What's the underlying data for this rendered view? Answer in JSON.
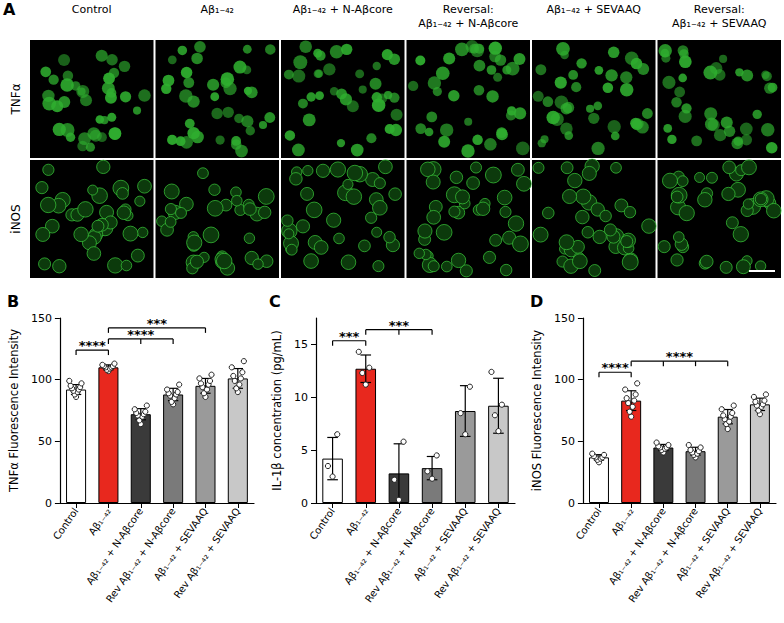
{
  "panel_a": {
    "label": "A",
    "columns": [
      [
        "Control"
      ],
      [
        "Aβ₁₋₄₂"
      ],
      [
        "Aβ₁₋₄₂ + N-Aβcore"
      ],
      [
        "Reversal:",
        "Aβ₁₋₄₂ + N-Aβcore"
      ],
      [
        "Aβ₁₋₄₂ + SEVAAQ"
      ],
      [
        "Reversal:",
        "Aβ₁₋₄₂ + SEVAAQ"
      ]
    ],
    "rows": [
      "TNFα",
      "iNOS"
    ]
  },
  "chart_data": [
    {
      "type": "bar",
      "title": "B",
      "categories": [
        "Control",
        "Aβ₁₋₄₂",
        "Aβ₁₋₄₂ + N-Aβcore",
        "Rev Aβ₁₋₄₂ + N-Aβcore",
        "Aβ₁₋₄₂ + SEVAAQ",
        "Rev Aβ₁₋₄₂ + SEVAAQ"
      ],
      "values": [
        92,
        110,
        72,
        88,
        95,
        101
      ],
      "errors": [
        4,
        2,
        4.5,
        5,
        6,
        8
      ],
      "points": [
        [
          86,
          88,
          90,
          91,
          92,
          93,
          94,
          95,
          97,
          99
        ],
        [
          107,
          108,
          109,
          110,
          110,
          111,
          111,
          112,
          113
        ],
        [
          64,
          67,
          70,
          71,
          72,
          73,
          74,
          76,
          79
        ],
        [
          80,
          82,
          85,
          87,
          88,
          89,
          90,
          92,
          96
        ],
        [
          86,
          89,
          92,
          94,
          96,
          97,
          99,
          101,
          104
        ],
        [
          90,
          93,
          96,
          99,
          101,
          103,
          106,
          110,
          115
        ]
      ],
      "colors": [
        "#ffffff",
        "#e8281e",
        "#3a3a3a",
        "#7a7a7a",
        "#9a9a9a",
        "#c8c8c8"
      ],
      "ylabel": "TNFα Fluorescence Intensity",
      "ylim": [
        0,
        150
      ],
      "yticks": [
        0,
        50,
        100,
        150
      ],
      "grid": false,
      "annotations": [
        {
          "from": 0,
          "to": [
            1
          ],
          "label": "****"
        },
        {
          "from": 1,
          "to": [
            2,
            3
          ],
          "label": "****"
        },
        {
          "from": 1,
          "to": [
            4
          ],
          "label": "***"
        }
      ]
    },
    {
      "type": "bar",
      "title": "C",
      "categories": [
        "Control",
        "Aβ₁₋₄₂",
        "Aβ₁₋₄₂ + N-Aβcore",
        "Rev Aβ₁₋₄₂ + N-Aβcore",
        "Aβ₁₋₄₂ + SEVAAQ",
        "Rev Aβ₁₋₄₂ + SEVAAQ"
      ],
      "values": [
        4.2,
        12.7,
        2.8,
        3.3,
        8.7,
        9.2
      ],
      "errors": [
        2,
        1.3,
        2.8,
        1.1,
        2.4,
        2.6
      ],
      "points": [
        [
          2.5,
          3.5,
          6.5
        ],
        [
          11.2,
          12.3,
          12.8,
          14.3
        ],
        [
          0.3,
          2.2,
          5.8
        ],
        [
          2.3,
          3.0,
          4.5
        ],
        [
          6.5,
          8.5,
          11.0
        ],
        [
          6.8,
          8.3,
          9.3,
          12.4
        ]
      ],
      "colors": [
        "#ffffff",
        "#e8281e",
        "#3a3a3a",
        "#7a7a7a",
        "#9a9a9a",
        "#c8c8c8"
      ],
      "ylabel": "IL-1β concentration (pg/mL)",
      "ylim": [
        0,
        17.5
      ],
      "yticks": [
        0,
        5,
        10,
        15
      ],
      "grid": false,
      "annotations": [
        {
          "from": 0,
          "to": [
            1
          ],
          "label": "***"
        },
        {
          "from": 1,
          "to": [
            2,
            3
          ],
          "label": "***"
        }
      ]
    },
    {
      "type": "bar",
      "title": "D",
      "categories": [
        "Control",
        "Aβ₁₋₄₂",
        "Aβ₁₋₄₂ + N-Aβcore",
        "Rev Aβ₁₋₄₂ + N-Aβcore",
        "Aβ₁₋₄₂ + SEVAAQ",
        "Rev Aβ₁₋₄₂ + SEVAAQ"
      ],
      "values": [
        37,
        83,
        45,
        42,
        70,
        80
      ],
      "errors": [
        2.2,
        8,
        2.5,
        3.2,
        5.8,
        5
      ],
      "points": [
        [
          33,
          35,
          36,
          37,
          37,
          38,
          39,
          40
        ],
        [
          70,
          74,
          78,
          81,
          83,
          85,
          88,
          92,
          97
        ],
        [
          41,
          43,
          44,
          45,
          45,
          46,
          47,
          49
        ],
        [
          37,
          39,
          40,
          41,
          42,
          43,
          45,
          47
        ],
        [
          60,
          64,
          66,
          68,
          70,
          71,
          73,
          76,
          79
        ],
        [
          72,
          75,
          78,
          79,
          80,
          82,
          83,
          86,
          88
        ]
      ],
      "colors": [
        "#ffffff",
        "#e8281e",
        "#3a3a3a",
        "#7a7a7a",
        "#9a9a9a",
        "#c8c8c8"
      ],
      "ylabel": "iNOS Fluorescence Intensity",
      "ylim": [
        0,
        150
      ],
      "yticks": [
        0,
        50,
        100,
        150
      ],
      "grid": false,
      "annotations": [
        {
          "from": 0,
          "to": [
            1
          ],
          "label": "****"
        },
        {
          "from": 1,
          "to": [
            2,
            3,
            4
          ],
          "label": "****"
        }
      ]
    }
  ]
}
